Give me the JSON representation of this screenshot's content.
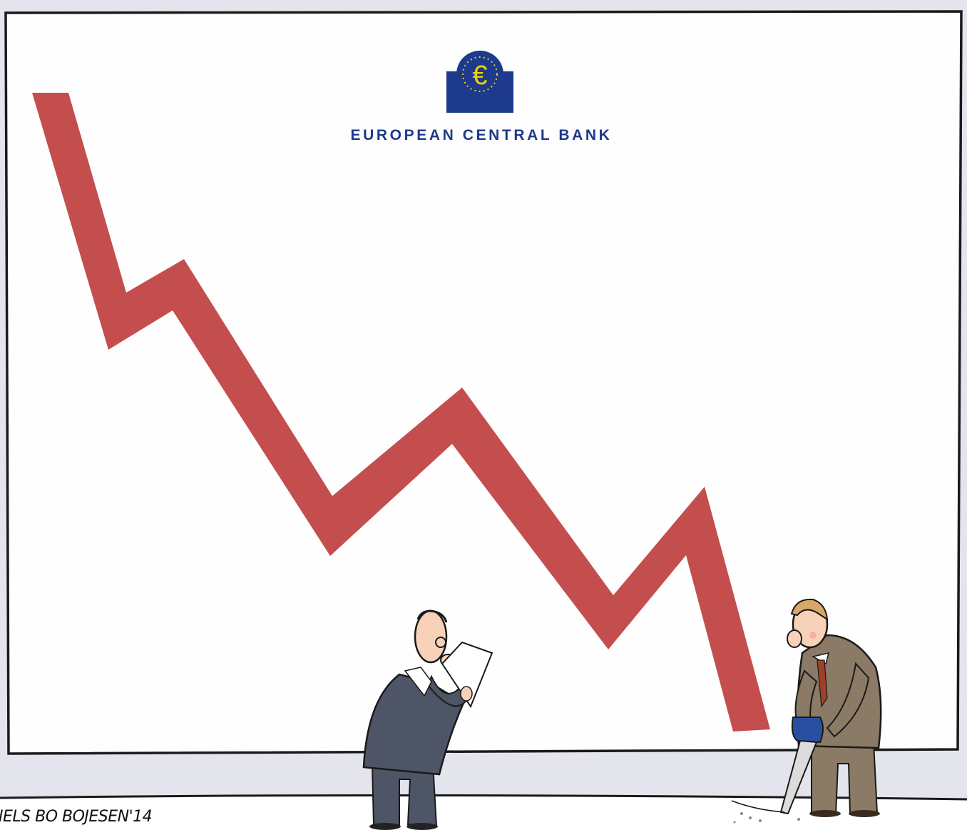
{
  "logo": {
    "symbol": "€",
    "name": "EUROPEAN CENTRAL BANK",
    "colors": {
      "blue": "#1d3a8c",
      "yellow": "#f2d200"
    }
  },
  "signature": "IELS BO BOJESEN'14",
  "colors": {
    "trend_line": "#c44e4e",
    "board": "#fefefe",
    "frame": "#1a1a1a",
    "wall": "#e4e5ec",
    "floor": "#ffffff"
  },
  "figures": [
    {
      "role": "man-reading-paper",
      "suit": "#4e5566"
    },
    {
      "role": "man-sawing-floor",
      "suit": "#8a7a66",
      "tie": "#a04028"
    }
  ]
}
